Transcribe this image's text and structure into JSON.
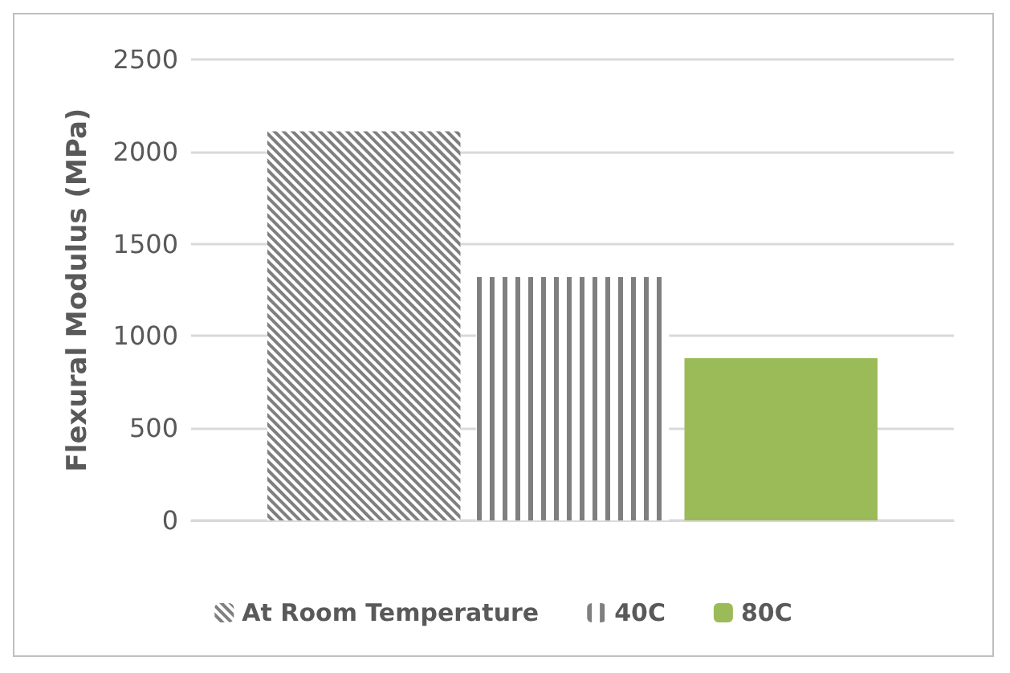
{
  "chart_data": {
    "type": "bar",
    "ylabel": "Flexural Modulus (MPa)",
    "categories": [
      null
    ],
    "series": [
      {
        "name": "At Room Temperature",
        "color": "#7f7f7f",
        "values": [
          2110
        ]
      },
      {
        "name": "40C",
        "color": "#7f7f7f",
        "values": [
          1320
        ]
      },
      {
        "name": "80C",
        "color": "#9bbb59",
        "values": [
          880
        ]
      }
    ],
    "ylim": [
      0,
      2500
    ],
    "yticks": [
      0,
      500,
      1000,
      1500,
      2000,
      2500
    ],
    "grid": "y",
    "legend": "bottom"
  }
}
